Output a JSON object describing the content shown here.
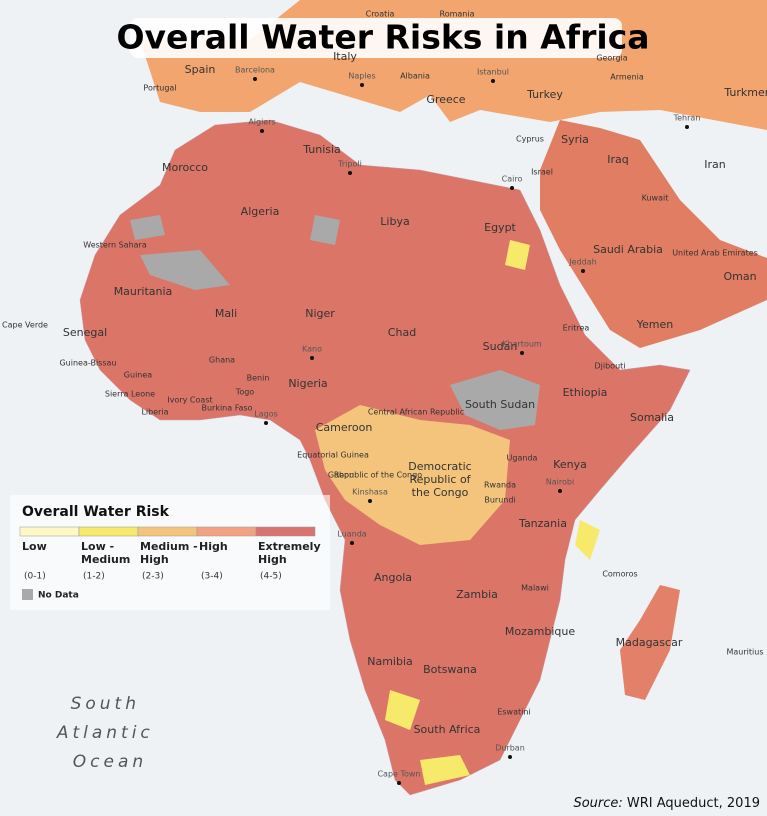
{
  "title": "Overall Water Risks in Africa",
  "legend": {
    "title": "Overall Water Risk",
    "items": [
      {
        "label": [
          "Low"
        ],
        "range": "(0-1)",
        "color": "#fdf8c6"
      },
      {
        "label": [
          "Low -",
          "Medium"
        ],
        "range": "(1-2)",
        "color": "#f7e96a"
      },
      {
        "label": [
          "Medium -",
          "High"
        ],
        "range": "(2-3)",
        "color": "#f4c47c"
      },
      {
        "label": [
          "High"
        ],
        "range": "(3-4)",
        "color": "#f2a183"
      },
      {
        "label": [
          "Extremely",
          "High"
        ],
        "range": "(4-5)",
        "color": "#d9736d"
      }
    ],
    "no_data": {
      "label": "No Data",
      "color": "#a9a9a9"
    }
  },
  "countries": [
    "Spain",
    "Portugal",
    "Morocco",
    "Algeria",
    "Tunisia",
    "Libya",
    "Egypt",
    "Western Sahara",
    "Mauritania",
    "Mali",
    "Niger",
    "Chad",
    "Sudan",
    "Senegal",
    "Guinea-Bissau",
    "Guinea",
    "Sierra Leone",
    "Liberia",
    "Ivory Coast",
    "Ghana",
    "Burkina Faso",
    "Togo",
    "Benin",
    "Nigeria",
    "Cameroon",
    "Central African Republic",
    "South Sudan",
    "Ethiopia",
    "Somalia",
    "Kenya",
    "Uganda",
    "Rwanda",
    "Burundi",
    [
      "Democratic",
      "Republic of",
      "the Congo"
    ],
    "Republic of the Congo",
    "Gabon",
    "Equatorial Guinea",
    "Tanzania",
    "Angola",
    "Zambia",
    "Malawi",
    "Mozambique",
    "Namibia",
    "Botswana",
    "South Africa",
    "Eswatini",
    "Madagascar",
    "Comoros",
    "Mauritius",
    "Cape Verde",
    "Djibouti",
    "Eritrea",
    "Yemen",
    "Oman",
    "Saudi Arabia",
    "United Arab Emirates",
    "Iraq",
    "Iran",
    "Syria",
    "Turkey",
    "Greece",
    "Italy",
    "Albania",
    "Romania",
    "Croatia",
    "Georgia",
    "Armenia",
    "Turkmen",
    "Cyprus",
    "Israel",
    "Kuwait"
  ],
  "cities": [
    "Barcelona",
    "Naples",
    "Istanbul",
    "Algiers",
    "Tripoli",
    "Cairo",
    "Jeddah",
    "Khartoum",
    "Kano",
    "Lagos",
    "Kinshasa",
    "Luanda",
    "Nairobi",
    "Durban",
    "Cape Town",
    "Tehran"
  ],
  "ocean": [
    "South",
    "Atlantic",
    "Ocean"
  ],
  "source": {
    "prefix": "Source:",
    "text": "WRI Aqueduct, 2019"
  }
}
